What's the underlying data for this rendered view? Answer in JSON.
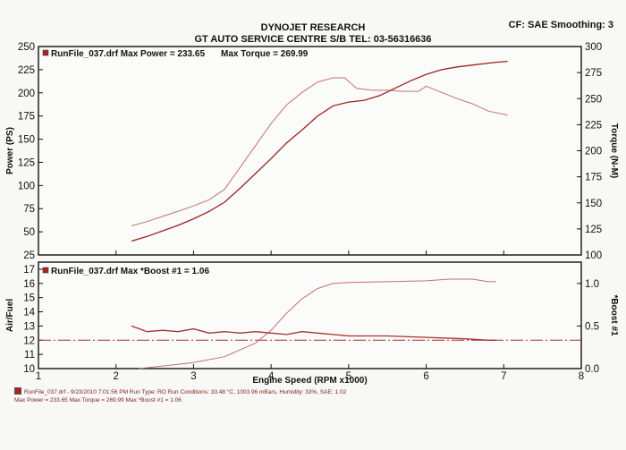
{
  "header": {
    "company": "DYNOJET RESEARCH",
    "shop": "GT AUTO SERVICE CENTRE S/B TEL: 03-56316636",
    "cf_line": "CF: SAE  Smoothing: 3"
  },
  "footer": {
    "line1": "RunFile_037.drf - 9/23/2010 7:01:56 PM  Run Type: RO  Run Conditions: 33.48 °C, 1003.96 mBars,  Humidity: 33%, SAE: 1.02",
    "line2": "Max Power = 233.65    Max Torque = 269.99    Max *Boost #1 = 1.06"
  },
  "colors": {
    "power": "#9a2222",
    "torque": "#c27272",
    "afr": "#a83030",
    "boost": "#c27272",
    "ref": "#a03030"
  },
  "chart_data": [
    {
      "type": "line",
      "legend": [
        "RunFile_037.drf Max Power = 233.65",
        "Max Torque = 269.99"
      ],
      "xlabel": "",
      "xlim": [
        1,
        8
      ],
      "ylabel": "Power (PS)",
      "ylim": [
        25,
        250
      ],
      "yticks": [
        25,
        50,
        75,
        100,
        125,
        150,
        175,
        200,
        225,
        250
      ],
      "y2label": "Torque (N-M)",
      "y2lim": [
        100,
        300
      ],
      "y2ticks": [
        100,
        125,
        150,
        175,
        200,
        225,
        250,
        275,
        300
      ],
      "grid": false,
      "series": [
        {
          "name": "Power",
          "axis": "left",
          "points": [
            [
              2.2,
              40
            ],
            [
              2.4,
              45
            ],
            [
              2.6,
              51
            ],
            [
              2.8,
              57
            ],
            [
              3.0,
              64
            ],
            [
              3.2,
              72
            ],
            [
              3.4,
              82
            ],
            [
              3.6,
              97
            ],
            [
              3.8,
              113
            ],
            [
              4.0,
              129
            ],
            [
              4.2,
              146
            ],
            [
              4.4,
              160
            ],
            [
              4.6,
              175
            ],
            [
              4.8,
              186
            ],
            [
              5.0,
              190
            ],
            [
              5.2,
              192
            ],
            [
              5.4,
              197
            ],
            [
              5.6,
              205
            ],
            [
              5.8,
              213
            ],
            [
              6.0,
              220
            ],
            [
              6.2,
              225
            ],
            [
              6.4,
              228
            ],
            [
              6.6,
              230
            ],
            [
              6.8,
              232
            ],
            [
              6.9,
              233
            ],
            [
              7.05,
              234
            ]
          ]
        },
        {
          "name": "Torque",
          "axis": "right",
          "points": [
            [
              2.2,
              128
            ],
            [
              2.4,
              132
            ],
            [
              2.6,
              137
            ],
            [
              2.8,
              142
            ],
            [
              3.0,
              147
            ],
            [
              3.2,
              153
            ],
            [
              3.4,
              163
            ],
            [
              3.6,
              184
            ],
            [
              3.8,
              205
            ],
            [
              4.0,
              226
            ],
            [
              4.2,
              244
            ],
            [
              4.4,
              256
            ],
            [
              4.6,
              266
            ],
            [
              4.8,
              270
            ],
            [
              4.95,
              270
            ],
            [
              5.1,
              260
            ],
            [
              5.3,
              258
            ],
            [
              5.5,
              258
            ],
            [
              5.7,
              257
            ],
            [
              5.9,
              257
            ],
            [
              6.0,
              262
            ],
            [
              6.2,
              256
            ],
            [
              6.4,
              250
            ],
            [
              6.6,
              245
            ],
            [
              6.8,
              238
            ],
            [
              7.0,
              235
            ],
            [
              7.05,
              234
            ]
          ]
        }
      ]
    },
    {
      "type": "line",
      "legend": [
        "RunFile_037.drf Max *Boost #1 = 1.06"
      ],
      "xlabel": "Engine Speed (RPM x1000)",
      "xlim": [
        1,
        8
      ],
      "xticks": [
        1,
        2,
        3,
        4,
        5,
        6,
        7,
        8
      ],
      "ylabel": "Air/Fuel",
      "ylim": [
        10,
        17.5
      ],
      "yticks": [
        10,
        11,
        12,
        13,
        14,
        15,
        16,
        17
      ],
      "y2label": "*Boost #1",
      "y2lim": [
        0.0,
        1.25
      ],
      "y2ticks": [
        0.0,
        0.5,
        1.0
      ],
      "grid": false,
      "reference_line": {
        "axis": "left",
        "value": 12
      },
      "series": [
        {
          "name": "Air/Fuel",
          "axis": "left",
          "points": [
            [
              2.2,
              13.0
            ],
            [
              2.4,
              12.6
            ],
            [
              2.6,
              12.7
            ],
            [
              2.8,
              12.6
            ],
            [
              3.0,
              12.8
            ],
            [
              3.2,
              12.5
            ],
            [
              3.4,
              12.6
            ],
            [
              3.6,
              12.5
            ],
            [
              3.8,
              12.6
            ],
            [
              4.0,
              12.5
            ],
            [
              4.2,
              12.4
            ],
            [
              4.4,
              12.6
            ],
            [
              4.6,
              12.5
            ],
            [
              4.8,
              12.4
            ],
            [
              5.0,
              12.3
            ],
            [
              5.5,
              12.3
            ],
            [
              6.0,
              12.2
            ],
            [
              6.5,
              12.1
            ],
            [
              6.8,
              12.0
            ],
            [
              6.9,
              12.0
            ]
          ]
        },
        {
          "name": "*Boost #1",
          "axis": "right",
          "points": [
            [
              2.3,
              0.0
            ],
            [
              2.6,
              0.03
            ],
            [
              3.0,
              0.07
            ],
            [
              3.4,
              0.14
            ],
            [
              3.8,
              0.3
            ],
            [
              4.0,
              0.45
            ],
            [
              4.2,
              0.65
            ],
            [
              4.4,
              0.82
            ],
            [
              4.6,
              0.94
            ],
            [
              4.8,
              1.0
            ],
            [
              5.0,
              1.01
            ],
            [
              5.5,
              1.02
            ],
            [
              6.0,
              1.03
            ],
            [
              6.3,
              1.05
            ],
            [
              6.6,
              1.05
            ],
            [
              6.8,
              1.02
            ],
            [
              6.9,
              1.02
            ]
          ]
        }
      ]
    }
  ]
}
